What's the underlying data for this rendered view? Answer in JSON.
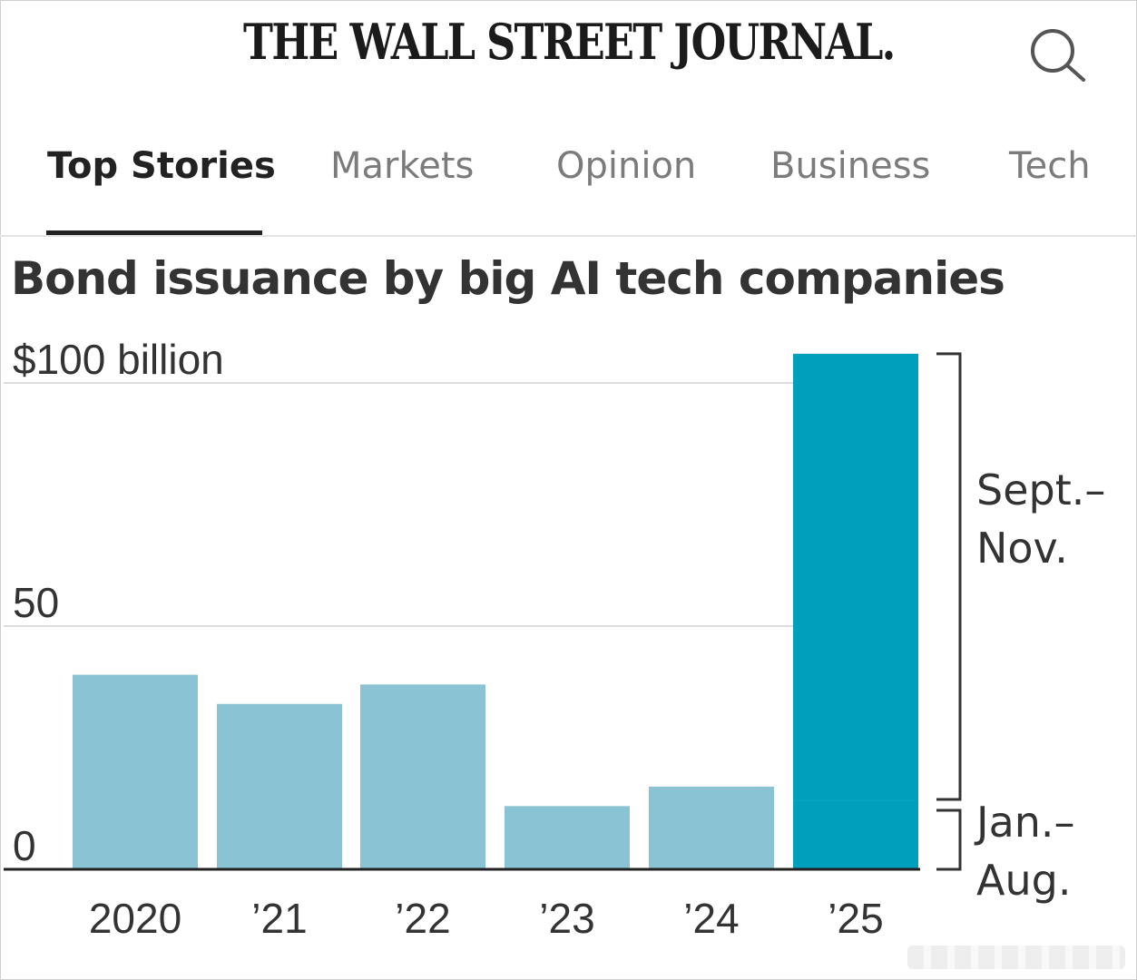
{
  "header": {
    "masthead": "THE WALL STREET JOURNAL.",
    "search_icon": "search-icon"
  },
  "tabs": [
    {
      "label": "Top Stories",
      "active": true
    },
    {
      "label": "Markets",
      "active": false
    },
    {
      "label": "Opinion",
      "active": false
    },
    {
      "label": "Business",
      "active": false
    },
    {
      "label": "Tech",
      "active": false
    }
  ],
  "colors": {
    "bar_previous_years": "#8ac4d4",
    "bar_current_year": "#00a0bd",
    "gridline": "#dddddd",
    "baseline": "#222222"
  },
  "chart_data": {
    "type": "bar",
    "title": "Bond issuance by big AI tech companies",
    "ylabel": "$ billion",
    "ylim": [
      0,
      106
    ],
    "y_ticks": [
      {
        "value": 100,
        "label": "$100 billion"
      },
      {
        "value": 50,
        "label": "50"
      },
      {
        "value": 0,
        "label": "0"
      }
    ],
    "categories": [
      "2020",
      "’21",
      "’22",
      "’23",
      "’24",
      "’25"
    ],
    "series": [
      {
        "name": "Jan.–Aug.",
        "values": [
          40,
          34,
          38,
          13,
          17,
          14
        ]
      },
      {
        "name": "Sept.–Nov.",
        "values": [
          0,
          0,
          0,
          0,
          0,
          92
        ]
      }
    ],
    "annotations": [
      {
        "label": "Sept.–Nov.",
        "applies_to": "’25",
        "segment": "Sept.–Nov."
      },
      {
        "label": "Jan.–Aug.",
        "applies_to": "’25",
        "segment": "Jan.–Aug."
      }
    ],
    "grid": true
  }
}
